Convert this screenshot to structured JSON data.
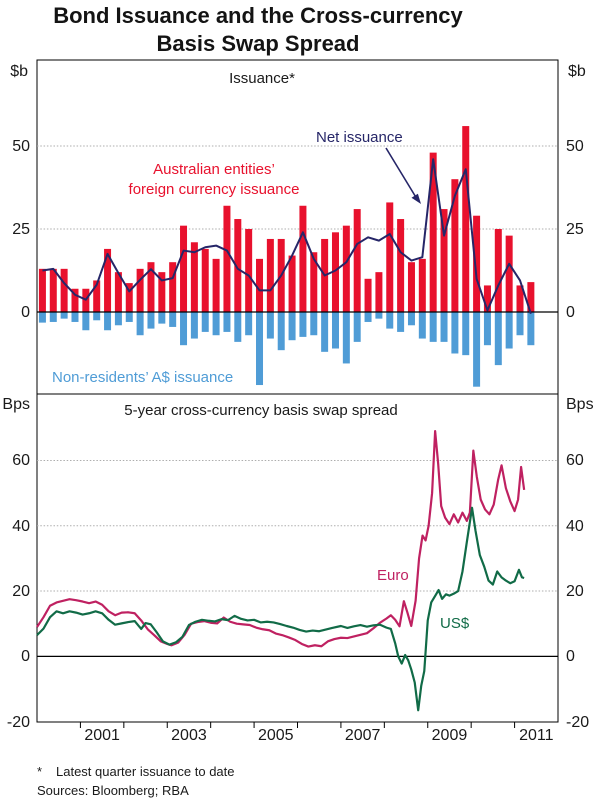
{
  "title": {
    "line1": "Bond Issuance and the Cross-currency",
    "line2": "Basis Swap Spread"
  },
  "footnotes": {
    "asterisk": "*",
    "note": "Latest quarter issuance to date",
    "sources": "Sources: Bloomberg; RBA"
  },
  "colors": {
    "red_bars": "#e8112d",
    "blue_bars": "#4f9cd6",
    "net_line": "#262668",
    "euro_line": "#bf2161",
    "usd_line": "#116b47",
    "gridline": "#adadad",
    "axis": "#000000"
  },
  "annotations": {
    "aus_line1": "Australian entities’",
    "aus_line2": "foreign currency issuance",
    "net": "Net issuance",
    "nonres": "Non-residents’ A$ issuance",
    "euro": "Euro",
    "usd": "US$"
  },
  "chart_data": [
    {
      "type": "bar",
      "panel": "top",
      "title": "Issuance*",
      "unit_label": "$b",
      "ylim": [
        -24.7,
        75.9
      ],
      "yticks": [
        0,
        25,
        50
      ],
      "xlim": [
        2000,
        2012
      ],
      "year_ticks": [
        2001,
        2002,
        2003,
        2004,
        2005,
        2006,
        2007,
        2008,
        2009,
        2010,
        2011
      ],
      "year_labels": [
        2001,
        2003,
        2005,
        2007,
        2009,
        2011
      ],
      "grid": true,
      "quarters_start": 2000.0,
      "quarter_step": 0.25,
      "series": [
        {
          "name": "Australian entities' foreign currency issuance",
          "type": "bar",
          "color_key": "red_bars",
          "values": [
            13,
            13,
            13,
            7,
            7,
            9.5,
            19,
            12,
            8.7,
            13,
            15,
            12,
            15,
            26,
            21,
            19,
            16,
            32,
            28,
            25,
            16,
            22,
            22,
            17,
            32,
            18,
            22,
            24,
            26,
            31,
            10,
            12,
            33,
            28,
            15,
            16,
            48,
            31,
            40,
            56,
            29,
            8,
            25,
            23,
            8,
            9
          ]
        },
        {
          "name": "Non-residents' A$ issuance",
          "type": "bar",
          "color_key": "blue_bars",
          "values": [
            -3.2,
            -3,
            -2,
            -3,
            -5.5,
            -2.5,
            -5.5,
            -4,
            -3,
            -7,
            -5,
            -3.5,
            -4.5,
            -10,
            -8,
            -6,
            -7,
            -6,
            -9,
            -7,
            -22,
            -8,
            -11.5,
            -8.5,
            -7.5,
            -7,
            -12,
            -11,
            -15.5,
            -9,
            -3,
            -2,
            -5,
            -6,
            -4,
            -8,
            -9,
            -9,
            -12.5,
            -13,
            -22.5,
            -10,
            -16,
            -11,
            -7,
            -10
          ]
        },
        {
          "name": "Net issuance",
          "type": "line",
          "color_key": "net_line",
          "values": [
            12.5,
            13,
            8.7,
            5.2,
            3.7,
            8.2,
            17.5,
            11.7,
            6.2,
            9.7,
            12.9,
            9.5,
            10.2,
            18.5,
            18,
            19.5,
            20,
            18.5,
            13,
            11,
            6.5,
            6.5,
            11,
            17,
            24,
            16,
            11,
            12.5,
            15,
            20.5,
            22.5,
            21.5,
            23.5,
            18,
            15.5,
            16.5,
            46,
            23,
            35,
            43,
            10,
            0.5,
            8,
            14.5,
            9.5,
            -0.5
          ]
        }
      ]
    },
    {
      "type": "line",
      "panel": "bottom",
      "title": "5-year cross-currency basis swap spread",
      "unit_label": "Bps",
      "ylim": [
        -20.1,
        80.35
      ],
      "yticks": [
        -20,
        0,
        20,
        40,
        60
      ],
      "xlim": [
        2000,
        2012
      ],
      "grid": true,
      "series": [
        {
          "name": "Euro",
          "type": "line",
          "color_key": "euro_line",
          "points": [
            [
              2000.0,
              9
            ],
            [
              2000.15,
              12
            ],
            [
              2000.3,
              15.5
            ],
            [
              2000.45,
              16.5
            ],
            [
              2000.6,
              17
            ],
            [
              2000.75,
              17.5
            ],
            [
              2000.9,
              17.2
            ],
            [
              2001.05,
              16.8
            ],
            [
              2001.2,
              16.3
            ],
            [
              2001.35,
              16.8
            ],
            [
              2001.5,
              15.8
            ],
            [
              2001.65,
              13.8
            ],
            [
              2001.8,
              12.6
            ],
            [
              2001.95,
              13.4
            ],
            [
              2002.1,
              13.5
            ],
            [
              2002.25,
              13.2
            ],
            [
              2002.4,
              11
            ],
            [
              2002.55,
              8.3
            ],
            [
              2002.7,
              6.5
            ],
            [
              2002.85,
              4.6
            ],
            [
              2003.0,
              3.8
            ],
            [
              2003.1,
              3.4
            ],
            [
              2003.25,
              4.2
            ],
            [
              2003.4,
              6.6
            ],
            [
              2003.55,
              10
            ],
            [
              2003.7,
              10.5
            ],
            [
              2003.85,
              10.8
            ],
            [
              2004.0,
              10.3
            ],
            [
              2004.15,
              10.1
            ],
            [
              2004.3,
              11.9
            ],
            [
              2004.45,
              10.6
            ],
            [
              2004.6,
              10
            ],
            [
              2004.75,
              9.8
            ],
            [
              2004.9,
              9.6
            ],
            [
              2005.05,
              8.8
            ],
            [
              2005.2,
              8.3
            ],
            [
              2005.35,
              8
            ],
            [
              2005.5,
              7
            ],
            [
              2005.65,
              6.5
            ],
            [
              2005.8,
              5.8
            ],
            [
              2005.95,
              5
            ],
            [
              2006.1,
              3.8
            ],
            [
              2006.25,
              3
            ],
            [
              2006.4,
              3.4
            ],
            [
              2006.55,
              3.1
            ],
            [
              2006.7,
              4.6
            ],
            [
              2006.85,
              5.3
            ],
            [
              2007.0,
              5.7
            ],
            [
              2007.15,
              5.6
            ],
            [
              2007.3,
              6.1
            ],
            [
              2007.45,
              6.6
            ],
            [
              2007.6,
              7.1
            ],
            [
              2007.75,
              8.6
            ],
            [
              2007.9,
              10.3
            ],
            [
              2008.05,
              11.6
            ],
            [
              2008.15,
              12.6
            ],
            [
              2008.25,
              11.2
            ],
            [
              2008.35,
              9.2
            ],
            [
              2008.45,
              16.9
            ],
            [
              2008.53,
              13.5
            ],
            [
              2008.62,
              9.3
            ],
            [
              2008.72,
              17
            ],
            [
              2008.8,
              30
            ],
            [
              2008.88,
              37
            ],
            [
              2008.95,
              35.5
            ],
            [
              2009.02,
              40
            ],
            [
              2009.1,
              50
            ],
            [
              2009.17,
              69
            ],
            [
              2009.24,
              59
            ],
            [
              2009.31,
              46
            ],
            [
              2009.4,
              42.5
            ],
            [
              2009.5,
              40.5
            ],
            [
              2009.6,
              43.5
            ],
            [
              2009.7,
              41
            ],
            [
              2009.8,
              44
            ],
            [
              2009.9,
              41.5
            ],
            [
              2009.97,
              44
            ],
            [
              2010.05,
              63
            ],
            [
              2010.13,
              55
            ],
            [
              2010.22,
              48
            ],
            [
              2010.32,
              45
            ],
            [
              2010.42,
              43.5
            ],
            [
              2010.52,
              46.5
            ],
            [
              2010.62,
              54
            ],
            [
              2010.7,
              58.5
            ],
            [
              2010.8,
              51.5
            ],
            [
              2010.9,
              47.5
            ],
            [
              2011.0,
              44.5
            ],
            [
              2011.08,
              48
            ],
            [
              2011.15,
              58
            ],
            [
              2011.22,
              51
            ]
          ]
        },
        {
          "name": "US$",
          "type": "line",
          "color_key": "usd_line",
          "points": [
            [
              2000.0,
              6.5
            ],
            [
              2000.15,
              8.5
            ],
            [
              2000.3,
              12
            ],
            [
              2000.45,
              13.8
            ],
            [
              2000.6,
              13.2
            ],
            [
              2000.75,
              13.8
            ],
            [
              2000.9,
              13.4
            ],
            [
              2001.05,
              12.8
            ],
            [
              2001.2,
              13.2
            ],
            [
              2001.35,
              13.8
            ],
            [
              2001.5,
              13.2
            ],
            [
              2001.65,
              11.2
            ],
            [
              2001.8,
              9.7
            ],
            [
              2001.95,
              10.1
            ],
            [
              2002.1,
              10.5
            ],
            [
              2002.25,
              10.8
            ],
            [
              2002.4,
              8.4
            ],
            [
              2002.5,
              10.2
            ],
            [
              2002.62,
              9.8
            ],
            [
              2002.75,
              7.5
            ],
            [
              2002.9,
              4.6
            ],
            [
              2003.05,
              3.6
            ],
            [
              2003.2,
              4.3
            ],
            [
              2003.35,
              6
            ],
            [
              2003.5,
              9.6
            ],
            [
              2003.65,
              10.6
            ],
            [
              2003.8,
              11.2
            ],
            [
              2003.95,
              10.9
            ],
            [
              2004.1,
              10.7
            ],
            [
              2004.25,
              11.4
            ],
            [
              2004.4,
              11.1
            ],
            [
              2004.55,
              12.4
            ],
            [
              2004.7,
              11.5
            ],
            [
              2004.85,
              11
            ],
            [
              2005.0,
              11.2
            ],
            [
              2005.15,
              10.4
            ],
            [
              2005.3,
              10.6
            ],
            [
              2005.45,
              10.4
            ],
            [
              2005.6,
              9.9
            ],
            [
              2005.75,
              9.3
            ],
            [
              2005.9,
              8.8
            ],
            [
              2006.05,
              8.1
            ],
            [
              2006.2,
              7.6
            ],
            [
              2006.35,
              7.9
            ],
            [
              2006.5,
              7.7
            ],
            [
              2006.65,
              8.2
            ],
            [
              2006.8,
              8.7
            ],
            [
              2007.0,
              9.3
            ],
            [
              2007.15,
              8.7
            ],
            [
              2007.3,
              9.2
            ],
            [
              2007.45,
              9.6
            ],
            [
              2007.6,
              9.1
            ],
            [
              2007.75,
              9.5
            ],
            [
              2007.9,
              9.7
            ],
            [
              2008.05,
              8.8
            ],
            [
              2008.15,
              8.4
            ],
            [
              2008.25,
              4
            ],
            [
              2008.32,
              0
            ],
            [
              2008.4,
              -2.2
            ],
            [
              2008.48,
              0.4
            ],
            [
              2008.55,
              -1.2
            ],
            [
              2008.62,
              -4
            ],
            [
              2008.7,
              -8
            ],
            [
              2008.78,
              -16.5
            ],
            [
              2008.85,
              -9
            ],
            [
              2008.92,
              -4.5
            ],
            [
              2009.0,
              11
            ],
            [
              2009.08,
              16.5
            ],
            [
              2009.17,
              18.5
            ],
            [
              2009.25,
              20.3
            ],
            [
              2009.33,
              17.6
            ],
            [
              2009.42,
              19
            ],
            [
              2009.5,
              18.6
            ],
            [
              2009.6,
              19.2
            ],
            [
              2009.7,
              20
            ],
            [
              2009.8,
              26
            ],
            [
              2009.9,
              35
            ],
            [
              2010.02,
              45.5
            ],
            [
              2010.1,
              38.5
            ],
            [
              2010.2,
              31
            ],
            [
              2010.3,
              27.5
            ],
            [
              2010.4,
              23.2
            ],
            [
              2010.5,
              22
            ],
            [
              2010.6,
              26
            ],
            [
              2010.7,
              24.2
            ],
            [
              2010.8,
              23.2
            ],
            [
              2010.9,
              22.4
            ],
            [
              2011.0,
              23
            ],
            [
              2011.1,
              26.5
            ],
            [
              2011.17,
              24.2
            ],
            [
              2011.22,
              24
            ]
          ]
        }
      ]
    }
  ]
}
